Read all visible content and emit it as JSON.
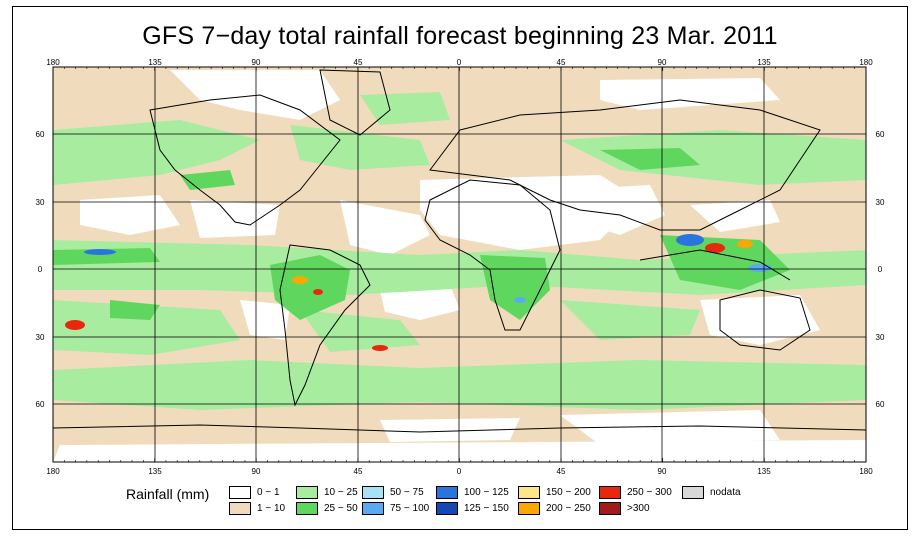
{
  "title": "GFS 7−day total rainfall forecast beginning 23 Mar. 2011",
  "axes": {
    "lon_labels": [
      "180",
      "135",
      "90",
      "45",
      "0",
      "45",
      "90",
      "135",
      "180"
    ],
    "lat_labels": [
      "60",
      "30",
      "0",
      "30",
      "60"
    ]
  },
  "legend": {
    "title": "Rainfall (mm)",
    "items": [
      {
        "label": "0 − 1",
        "color": "#ffffff"
      },
      {
        "label": "1 − 10",
        "color": "#f0dcbc"
      },
      {
        "label": "10 − 25",
        "color": "#a8eca0"
      },
      {
        "label": "25 − 50",
        "color": "#5fd75f"
      },
      {
        "label": "50 − 75",
        "color": "#a8e0f4"
      },
      {
        "label": "75 − 100",
        "color": "#5aaaf0"
      },
      {
        "label": "100 − 125",
        "color": "#2b74dc"
      },
      {
        "label": "125 − 150",
        "color": "#1448b4"
      },
      {
        "label": "150 − 200",
        "color": "#fde68a"
      },
      {
        "label": "200 − 250",
        "color": "#f8a800"
      },
      {
        "label": "250 − 300",
        "color": "#e8280c"
      },
      {
        "label": ">300",
        "color": "#a01c1c"
      },
      {
        "label": "nodata",
        "color": "#d8d8d8"
      }
    ]
  }
}
